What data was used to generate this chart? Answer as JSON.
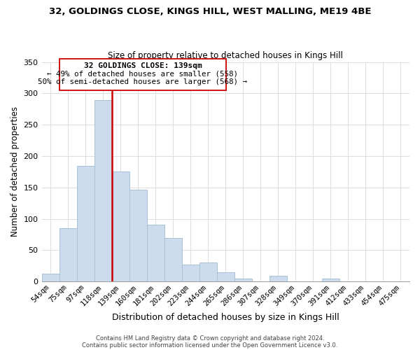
{
  "title1": "32, GOLDINGS CLOSE, KINGS HILL, WEST MALLING, ME19 4BE",
  "title2": "Size of property relative to detached houses in Kings Hill",
  "xlabel": "Distribution of detached houses by size in Kings Hill",
  "ylabel": "Number of detached properties",
  "bin_labels": [
    "54sqm",
    "75sqm",
    "97sqm",
    "118sqm",
    "139sqm",
    "160sqm",
    "181sqm",
    "202sqm",
    "223sqm",
    "244sqm",
    "265sqm",
    "286sqm",
    "307sqm",
    "328sqm",
    "349sqm",
    "370sqm",
    "391sqm",
    "412sqm",
    "433sqm",
    "454sqm",
    "475sqm"
  ],
  "bar_heights": [
    13,
    85,
    184,
    289,
    175,
    146,
    91,
    69,
    27,
    30,
    15,
    5,
    0,
    9,
    0,
    0,
    5,
    0,
    0,
    0,
    0
  ],
  "bar_color": "#ccdcec",
  "bar_edge_color": "#a8c0d8",
  "vline_color": "#cc0000",
  "annotation_title": "32 GOLDINGS CLOSE: 139sqm",
  "annotation_line1": "← 49% of detached houses are smaller (558)",
  "annotation_line2": "50% of semi-detached houses are larger (568) →",
  "annotation_box_edge": "#cc0000",
  "ylim": [
    0,
    350
  ],
  "yticks": [
    0,
    50,
    100,
    150,
    200,
    250,
    300,
    350
  ],
  "footer1": "Contains HM Land Registry data © Crown copyright and database right 2024.",
  "footer2": "Contains public sector information licensed under the Open Government Licence v3.0."
}
